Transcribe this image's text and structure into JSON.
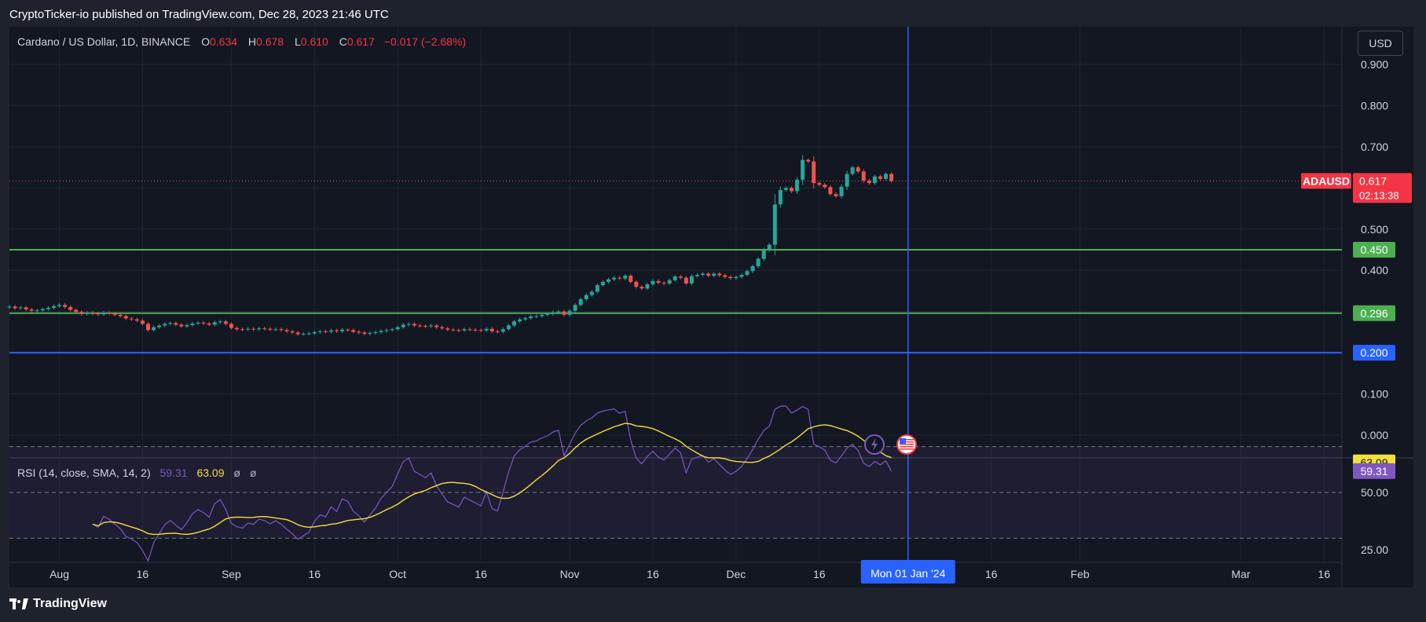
{
  "header": {
    "published": "CryptoTicker-io published on TradingView.com, Dec 28, 2023 21:46 UTC"
  },
  "legend": {
    "symbol": "Cardano / US Dollar, 1D, BINANCE",
    "o_label": "O",
    "o": "0.634",
    "h_label": "H",
    "h": "0.678",
    "l_label": "L",
    "l": "0.610",
    "c_label": "C",
    "c": "0.617",
    "change": "−0.017 (−2.68%)"
  },
  "rsi_legend": {
    "label": "RSI (14, close, SMA, 14, 2)",
    "rsi": "59.31",
    "sma": "63.09",
    "na1": "ø",
    "na2": "ø"
  },
  "currency": "USD",
  "footer": {
    "brand": "TradingView"
  },
  "colors": {
    "up": "#26a69a",
    "down": "#ef5350",
    "support": "#4caf50",
    "blue": "#2962ff",
    "rsi": "#7e57c2",
    "sma": "#f2e03c"
  },
  "chart_data": [
    {
      "type": "candlestick",
      "title": "Cardano / US Dollar, 1D, BINANCE",
      "ylim": [
        -0.05,
        0.95
      ],
      "y_ticks": [
        "0.900",
        "0.800",
        "0.700",
        "0.500",
        "0.400",
        "0.100",
        "0.000"
      ],
      "x_ticks": [
        {
          "label": "Aug",
          "day": 9
        },
        {
          "label": "16",
          "day": 24
        },
        {
          "label": "Sep",
          "day": 40
        },
        {
          "label": "16",
          "day": 55
        },
        {
          "label": "Oct",
          "day": 70
        },
        {
          "label": "16",
          "day": 85
        },
        {
          "label": "Nov",
          "day": 101
        },
        {
          "label": "16",
          "day": 116
        },
        {
          "label": "Dec",
          "day": 131
        },
        {
          "label": "16",
          "day": 146
        },
        {
          "label": "16",
          "day": 177
        },
        {
          "label": "Feb",
          "day": 193
        },
        {
          "label": "Mar",
          "day": 222
        },
        {
          "label": "16",
          "day": 237
        }
      ],
      "cursor": {
        "label": "Mon 01 Jan '24",
        "day": 162
      },
      "last_price": {
        "symbol": "ADAUSD",
        "value": 0.617,
        "label": "0.617",
        "countdown": "02:13:38"
      },
      "levels": [
        {
          "value": 0.45,
          "label": "0.450",
          "color": "#4caf50"
        },
        {
          "value": 0.296,
          "label": "0.296",
          "color": "#4caf50"
        },
        {
          "value": 0.2,
          "label": "0.200",
          "color": "#2962ff"
        }
      ],
      "first_day": 0,
      "closes": [
        0.312,
        0.308,
        0.31,
        0.305,
        0.302,
        0.303,
        0.306,
        0.309,
        0.313,
        0.316,
        0.311,
        0.304,
        0.299,
        0.294,
        0.297,
        0.295,
        0.293,
        0.297,
        0.295,
        0.292,
        0.289,
        0.283,
        0.281,
        0.278,
        0.27,
        0.255,
        0.262,
        0.266,
        0.27,
        0.272,
        0.268,
        0.264,
        0.267,
        0.271,
        0.273,
        0.271,
        0.268,
        0.274,
        0.276,
        0.27,
        0.26,
        0.257,
        0.256,
        0.258,
        0.257,
        0.259,
        0.258,
        0.256,
        0.257,
        0.255,
        0.252,
        0.249,
        0.245,
        0.246,
        0.247,
        0.25,
        0.252,
        0.251,
        0.254,
        0.252,
        0.256,
        0.255,
        0.251,
        0.249,
        0.246,
        0.248,
        0.25,
        0.253,
        0.255,
        0.257,
        0.262,
        0.268,
        0.27,
        0.266,
        0.265,
        0.264,
        0.266,
        0.262,
        0.259,
        0.256,
        0.255,
        0.254,
        0.257,
        0.256,
        0.255,
        0.254,
        0.258,
        0.252,
        0.251,
        0.257,
        0.266,
        0.276,
        0.281,
        0.284,
        0.288,
        0.289,
        0.292,
        0.294,
        0.298,
        0.3,
        0.292,
        0.302,
        0.316,
        0.33,
        0.34,
        0.348,
        0.364,
        0.372,
        0.378,
        0.382,
        0.38,
        0.387,
        0.372,
        0.36,
        0.356,
        0.366,
        0.374,
        0.37,
        0.368,
        0.376,
        0.385,
        0.382,
        0.368,
        0.386,
        0.389,
        0.392,
        0.387,
        0.392,
        0.388,
        0.384,
        0.381,
        0.384,
        0.389,
        0.398,
        0.41,
        0.428,
        0.449,
        0.462,
        0.56,
        0.595,
        0.6,
        0.592,
        0.62,
        0.668,
        0.664,
        0.612,
        0.608,
        0.602,
        0.585,
        0.58,
        0.603,
        0.634,
        0.65,
        0.64,
        0.618,
        0.612,
        0.628,
        0.622,
        0.634,
        0.617
      ],
      "rsi_ylim": [
        15,
        105
      ],
      "rsi_ticks": [
        "50.00",
        "25.00"
      ],
      "rsi_bands": [
        70,
        50,
        30
      ],
      "rsi_last": {
        "rsi": 59.31,
        "sma": 63.09,
        "rsi_label": "59.31",
        "sma_label": "63.09"
      }
    }
  ]
}
